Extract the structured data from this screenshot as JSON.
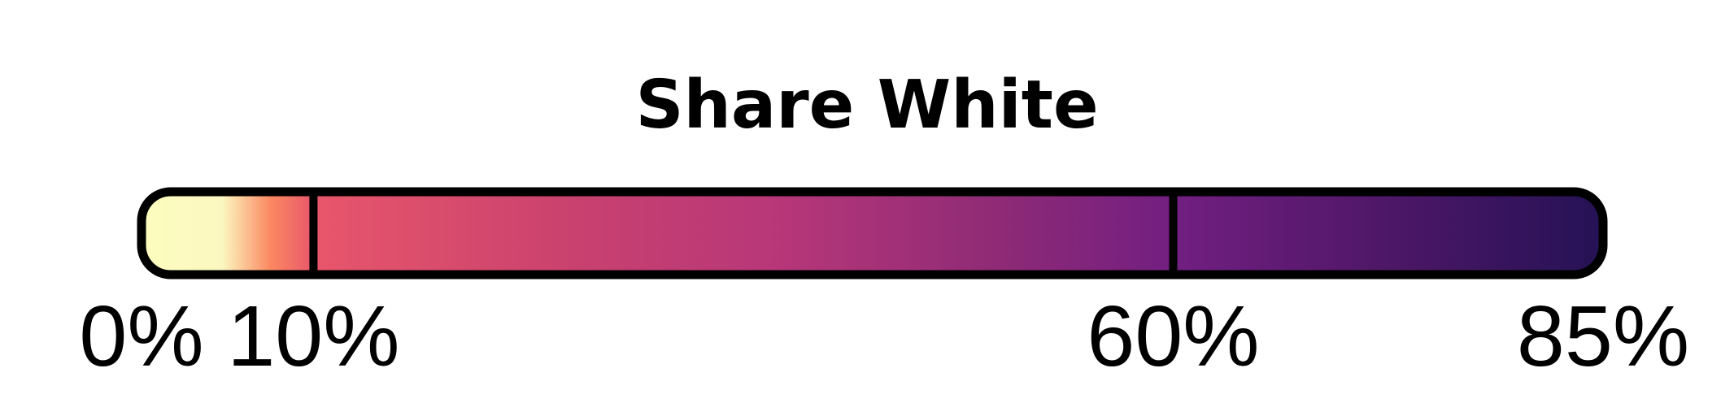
{
  "chart_data": {
    "type": "colorbar",
    "title": "Share White",
    "colormap": "magma",
    "range": [
      0,
      85
    ],
    "ticks": [
      {
        "value": 0,
        "label": "0%"
      },
      {
        "value": 10,
        "label": "10%"
      },
      {
        "value": 60,
        "label": "60%"
      },
      {
        "value": 85,
        "label": "85%"
      }
    ],
    "dividers": [
      10,
      60
    ],
    "color_stops": [
      {
        "value": 0,
        "color": "#fcfdbf"
      },
      {
        "value": 4.7,
        "color": "#fbf7c0"
      },
      {
        "value": 7.5,
        "color": "#fb8861"
      },
      {
        "value": 10,
        "color": "#e8566b"
      },
      {
        "value": 25,
        "color": "#c9416e"
      },
      {
        "value": 37,
        "color": "#b73779"
      },
      {
        "value": 50,
        "color": "#8e2a76"
      },
      {
        "value": 60,
        "color": "#721f81"
      },
      {
        "value": 72,
        "color": "#4f1768"
      },
      {
        "value": 85,
        "color": "#251255"
      }
    ]
  }
}
